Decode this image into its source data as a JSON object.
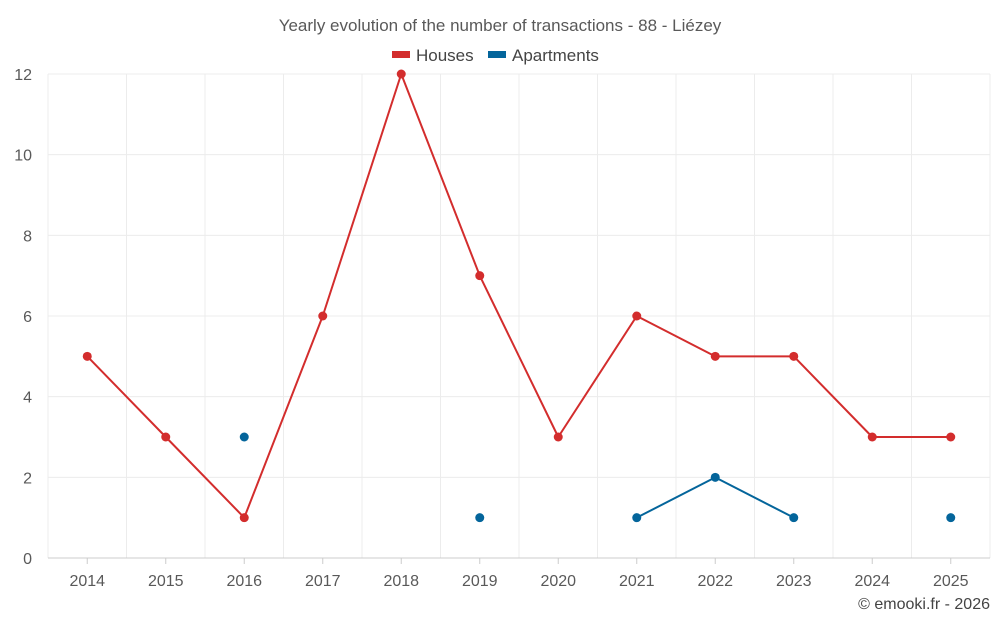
{
  "chart_data": {
    "type": "line",
    "title": "Yearly evolution of the number of transactions - 88 - Liézey",
    "categories": [
      "2014",
      "2015",
      "2016",
      "2017",
      "2018",
      "2019",
      "2020",
      "2021",
      "2022",
      "2023",
      "2024",
      "2025"
    ],
    "series": [
      {
        "name": "Houses",
        "color": "#d32d2d",
        "values": [
          5,
          3,
          1,
          6,
          12,
          7,
          3,
          6,
          5,
          5,
          3,
          3
        ]
      },
      {
        "name": "Apartments",
        "color": "#04659b",
        "values": [
          null,
          null,
          3,
          null,
          null,
          1,
          null,
          1,
          2,
          1,
          null,
          1
        ]
      }
    ],
    "ylim": [
      0,
      12
    ],
    "yticks": [
      0,
      2,
      4,
      6,
      8,
      10,
      12
    ],
    "xlabel": "",
    "ylabel": "",
    "grid": true,
    "legend": "top-center"
  },
  "credit": "© emooki.fr - 2026"
}
